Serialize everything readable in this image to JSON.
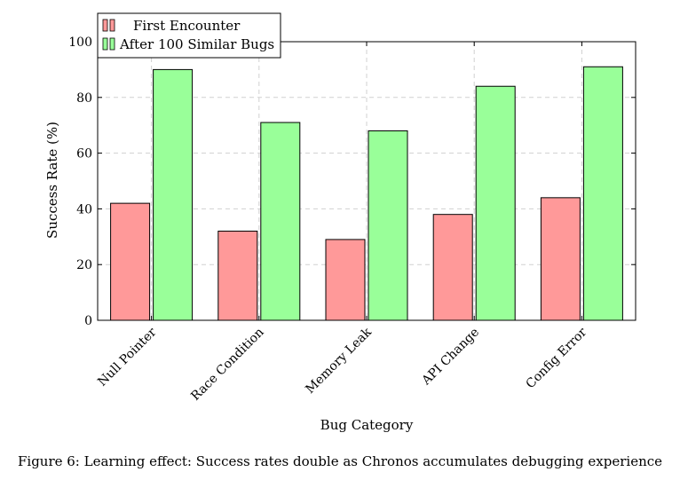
{
  "chart_data": {
    "type": "bar",
    "title": "",
    "xlabel": "Bug Category",
    "ylabel": "Success Rate (%)",
    "ylim": [
      0,
      100
    ],
    "yticks": [
      0,
      20,
      40,
      60,
      80,
      100
    ],
    "grid": true,
    "legend_position": "top-left",
    "categories": [
      "Null Pointer",
      "Race Condition",
      "Memory Leak",
      "API Change",
      "Config Error"
    ],
    "series": [
      {
        "name": "First Encounter",
        "values": [
          42,
          32,
          29,
          38,
          44
        ],
        "color": "#ff9999"
      },
      {
        "name": "After 100 Similar Bugs",
        "values": [
          90,
          71,
          68,
          84,
          91
        ],
        "color": "#99ff99"
      }
    ]
  },
  "caption": "Figure 6: Learning effect: Success rates double as Chronos accumulates debugging experience"
}
